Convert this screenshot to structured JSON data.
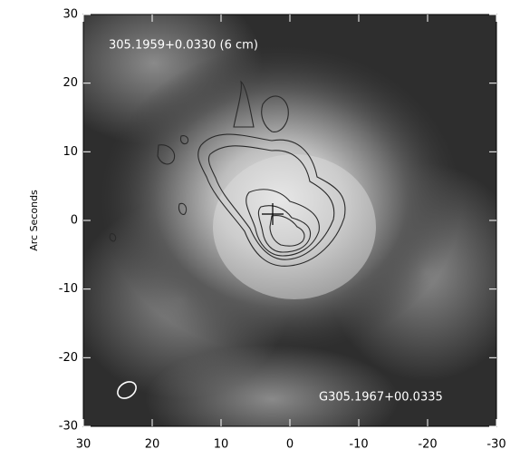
{
  "chart_data": {
    "type": "image",
    "ylabel": "Arc Seconds",
    "xlim": [
      30,
      -30
    ],
    "ylim": [
      -30,
      30
    ],
    "xticks": [
      30,
      20,
      10,
      0,
      -10,
      -20,
      -30
    ],
    "yticks": [
      -30,
      -20,
      -10,
      0,
      10,
      20,
      30
    ],
    "annotations": [
      "305.1959+0.0330 (6 cm)",
      "G305.1967+00.0335"
    ]
  }
}
